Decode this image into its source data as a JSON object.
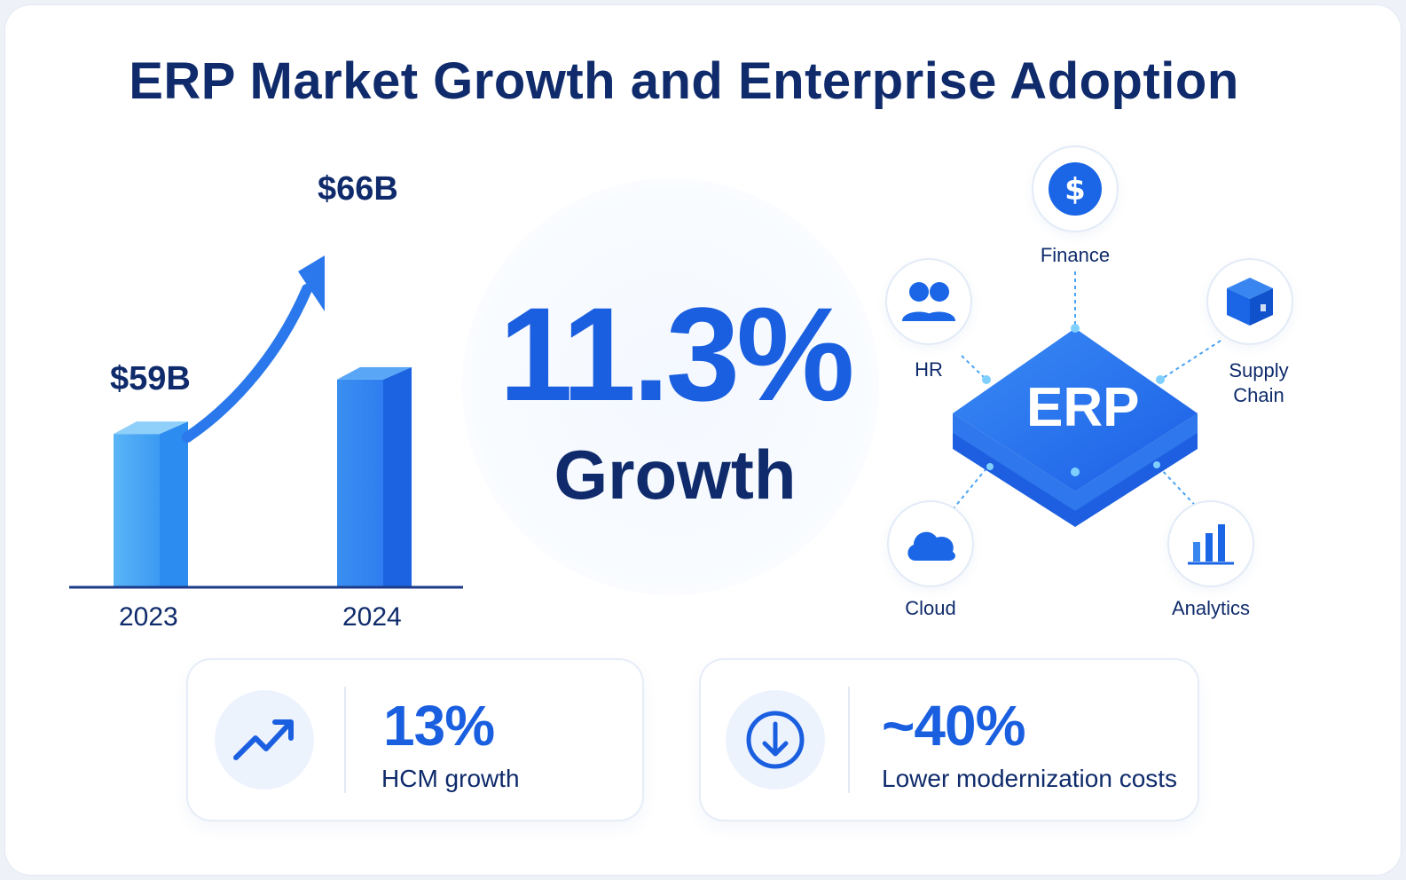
{
  "title": "ERP Market Growth and Enterprise Adoption",
  "chart_data": {
    "type": "bar",
    "categories": [
      "2023",
      "2024"
    ],
    "values": [
      59,
      66
    ],
    "value_labels": [
      "$59B",
      "$66B"
    ]
  },
  "growth": {
    "value": "11.3%",
    "label": "Growth"
  },
  "erp": {
    "center_label": "ERP",
    "nodes": {
      "finance": "Finance",
      "hr": "HR",
      "supply_chain_line1": "Supply",
      "supply_chain_line2": "Chain",
      "cloud": "Cloud",
      "analytics": "Analytics"
    }
  },
  "stats": [
    {
      "value": "13%",
      "label": "HCM growth",
      "icon": "trend-up-icon"
    },
    {
      "value": "~40%",
      "label": "Lower modernization costs",
      "icon": "arrow-down-circle-icon"
    }
  ],
  "colors": {
    "accent": "#1a5fe0",
    "navy": "#0f2b6b",
    "light_blue": "#4aa3f5"
  }
}
